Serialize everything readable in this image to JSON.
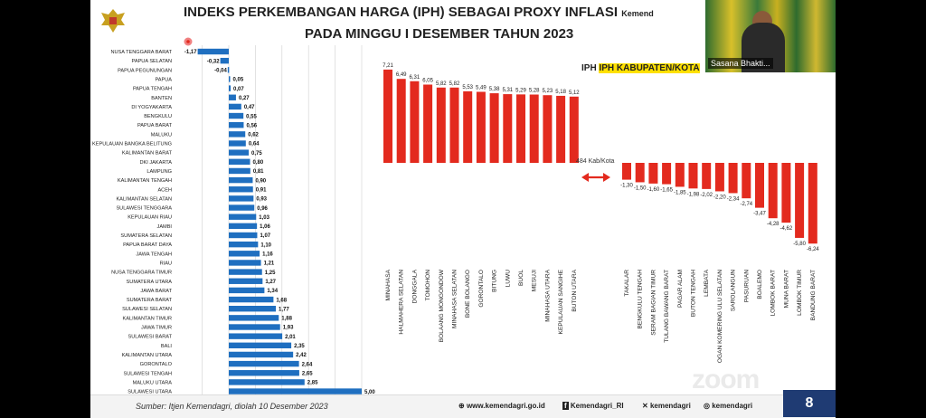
{
  "title_line1": "INDEKS PERKEMBANGAN HARGA (IPH) SEBAGAI PROXY INFLASI",
  "title_line1_suffix": "Kemend",
  "title_line2": "PADA MINGGU I DESEMBER TAHUN 2023",
  "right_chart_title": "IPH KABUPATEN/KOTA",
  "count_label": "484 Kab/Kota",
  "webcam_name": "Sasana Bhakti...",
  "source": "Sumber: Itjen Kemendagri, diolah 10 Desember 2023",
  "social": {
    "website": "www.kemendagri.go.id",
    "facebook": "Kemendagri_RI",
    "twitter": "kemendagri",
    "instagram": "kemendagri"
  },
  "page_number": "8",
  "zoom_watermark": "zoom",
  "colors": {
    "blue": "#1f6fc0",
    "red": "#e32a1e",
    "navy": "#1f3b73"
  },
  "icons": [
    "emblem-garuda",
    "globe-icon",
    "facebook-icon",
    "twitter-icon",
    "instagram-icon"
  ],
  "chart_data": [
    {
      "type": "bar",
      "orientation": "horizontal",
      "categories": [
        "NUSA TENGGARA BARAT",
        "PAPUA SELATAN",
        "PAPUA PEGUNUNGAN",
        "PAPUA",
        "PAPUA TENGAH",
        "BANTEN",
        "DI YOGYAKARTA",
        "BENGKULU",
        "PAPUA BARAT",
        "MALUKU",
        "KEPULAUAN BANGKA BELITUNG",
        "KALIMANTAN BARAT",
        "DKI JAKARTA",
        "LAMPUNG",
        "KALIMANTAN TENGAH",
        "ACEH",
        "KALIMANTAN SELATAN",
        "SULAWESI TENGGARA",
        "KEPULAUAN RIAU",
        "JAMBI",
        "SUMATERA SELATAN",
        "PAPUA BARAT DAYA",
        "JAWA TENGAH",
        "RIAU",
        "NUSA TENGGARA TIMUR",
        "SUMATERA UTARA",
        "JAWA BARAT",
        "SUMATERA BARAT",
        "SULAWESI SELATAN",
        "KALIMANTAN TIMUR",
        "JAWA TIMUR",
        "SULAWESI BARAT",
        "BALI",
        "KALIMANTAN UTARA",
        "GORONTALO",
        "SULAWESI TENGAH",
        "MALUKU UTARA",
        "SULAWESI UTARA"
      ],
      "values": [
        -1.17,
        -0.32,
        -0.04,
        0.05,
        0.07,
        0.27,
        0.47,
        0.55,
        0.56,
        0.62,
        0.64,
        0.75,
        0.8,
        0.81,
        0.9,
        0.91,
        0.93,
        0.96,
        1.03,
        1.06,
        1.07,
        1.1,
        1.16,
        1.21,
        1.25,
        1.27,
        1.34,
        1.68,
        1.77,
        1.88,
        1.93,
        2.01,
        2.35,
        2.42,
        2.64,
        2.65,
        2.85,
        5.0
      ],
      "labels": [
        "-1,17",
        "-0,32",
        "-0,04",
        "0,05",
        "0,07",
        "0,27",
        "0,47",
        "0,55",
        "0,56",
        "0,62",
        "0,64",
        "0,75",
        "0,80",
        "0,81",
        "0,90",
        "0,91",
        "0,93",
        "0,96",
        "1,03",
        "1,06",
        "1,07",
        "1,10",
        "1,16",
        "1,21",
        "1,25",
        "1,27",
        "1,34",
        "1,68",
        "1,77",
        "1,88",
        "1,93",
        "2,01",
        "2,35",
        "2,42",
        "2,64",
        "2,65",
        "2,85",
        "5,00"
      ],
      "xlim": [
        -1.5,
        5.0
      ],
      "grid": true
    },
    {
      "type": "bar",
      "orientation": "vertical",
      "groups": [
        {
          "name": "top",
          "categories": [
            "MINAHASA",
            "HALMAHERA SELATAN",
            "DONGGALA",
            "TOMOHON",
            "BOLAANG MONGONDOW",
            "MINAHASA SELATAN",
            "BONE BOLANGO",
            "GORONTALO",
            "BITUNG",
            "LUWU",
            "BUOL",
            "MESUJI",
            "MINAHASA UTARA",
            "KEPULAUAN SANGIHE",
            "BUTON UTARA"
          ],
          "values": [
            7.21,
            6.49,
            6.31,
            6.05,
            5.82,
            5.82,
            5.53,
            5.49,
            5.38,
            5.31,
            5.29,
            5.28,
            5.23,
            5.18,
            5.12
          ],
          "labels": [
            "7,21",
            "6,49",
            "6,31",
            "6,05",
            "5,82",
            "5,82",
            "5,53",
            "5,49",
            "5,38",
            "5,31",
            "5,29",
            "5,28",
            "5,23",
            "5,18",
            "5,12"
          ]
        },
        {
          "name": "bottom",
          "categories": [
            "TAKALAR",
            "BENGKULU TENGAH",
            "SERAM BAGIAN TIMUR",
            "TULANG BAWANG BARAT",
            "PAGAR ALAM",
            "BUTON TENGAH",
            "LEMBATA",
            "OGAN KOMERING ULU SELATAN",
            "SAROLANGUN",
            "PASURUAN",
            "BOALEMO",
            "LOMBOK BARAT",
            "MUNA BARAT",
            "LOMBOK TIMUR",
            "BANDUNG BARAT"
          ],
          "values": [
            -1.3,
            -1.5,
            -1.6,
            -1.65,
            -1.85,
            -1.98,
            -2.02,
            -2.2,
            -2.34,
            -2.74,
            -3.47,
            -4.28,
            -4.62,
            -5.8,
            -6.24
          ],
          "labels": [
            "-1,30",
            "-1,50",
            "-1,60",
            "-1,65",
            "-1,85",
            "-1,98",
            "-2,02",
            "-2,20",
            "-2,34",
            "-2,74",
            "-3,47",
            "-4,28",
            "-4,62",
            "-5,80",
            "-6,24"
          ]
        }
      ]
    }
  ]
}
